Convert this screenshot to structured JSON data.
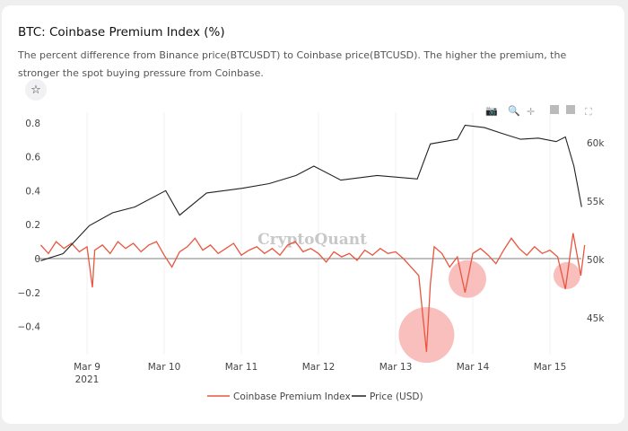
{
  "header": {
    "title": "BTC: Coinbase Premium Index (%)",
    "description": "The percent difference from Binance price(BTCUSDT) to Coinbase price(BTCUSD). The higher the premium, the stronger the spot buying pressure from Coinbase.",
    "favorite_icon": "star-icon"
  },
  "toolbar": {
    "icons": [
      "camera-icon",
      "zoom-icon",
      "pan-icon",
      "zoom-in-icon",
      "zoom-out-icon",
      "autoscale-icon"
    ]
  },
  "watermark": "CryptoQuant",
  "chart_data": {
    "type": "line",
    "title": "BTC: Coinbase Premium Index (%)",
    "x_unit": "days since Mar 9 2021 00:00",
    "x_ticks": [
      {
        "v": 0,
        "label": "Mar 9",
        "sub": "2021"
      },
      {
        "v": 1,
        "label": "Mar 10"
      },
      {
        "v": 2,
        "label": "Mar 11"
      },
      {
        "v": 3,
        "label": "Mar 12"
      },
      {
        "v": 4,
        "label": "Mar 13"
      },
      {
        "v": 5,
        "label": "Mar 14"
      },
      {
        "v": 6,
        "label": "Mar 15"
      }
    ],
    "xlim": [
      -0.6,
      6.5
    ],
    "y_left": {
      "ticks": [
        {
          "v": 0.8,
          "label": "0.8"
        },
        {
          "v": 0.6,
          "label": "0.6"
        },
        {
          "v": 0.4,
          "label": "0.4"
        },
        {
          "v": 0.2,
          "label": "0.2"
        },
        {
          "v": 0,
          "label": "0"
        },
        {
          "v": -0.2,
          "label": "−0.2"
        },
        {
          "v": -0.4,
          "label": "−0.4"
        }
      ]
    },
    "y_right": {
      "ticks": [
        {
          "v": 60,
          "label": "60k"
        },
        {
          "v": 55,
          "label": "55k"
        },
        {
          "v": 50,
          "label": "50k"
        },
        {
          "v": 45,
          "label": "45k"
        }
      ]
    },
    "series": [
      {
        "name": "Coinbase Premium Index",
        "axis": "left",
        "color": "#e8563f",
        "x": [
          -0.6,
          -0.5,
          -0.4,
          -0.3,
          -0.2,
          -0.1,
          0,
          0.07,
          0.1,
          0.2,
          0.3,
          0.4,
          0.5,
          0.6,
          0.7,
          0.8,
          0.9,
          1.0,
          1.1,
          1.2,
          1.3,
          1.4,
          1.5,
          1.6,
          1.7,
          1.8,
          1.9,
          2.0,
          2.1,
          2.2,
          2.3,
          2.4,
          2.5,
          2.6,
          2.7,
          2.8,
          2.9,
          3.0,
          3.1,
          3.2,
          3.3,
          3.4,
          3.5,
          3.6,
          3.7,
          3.8,
          3.9,
          4.0,
          4.1,
          4.2,
          4.3,
          4.4,
          4.45,
          4.5,
          4.6,
          4.7,
          4.8,
          4.9,
          5.0,
          5.1,
          5.2,
          5.3,
          5.4,
          5.5,
          5.6,
          5.7,
          5.8,
          5.9,
          6.0,
          6.1,
          6.2,
          6.3,
          6.4,
          6.45
        ],
        "values": [
          0.08,
          0.03,
          0.1,
          0.06,
          0.09,
          0.04,
          0.07,
          -0.17,
          0.05,
          0.08,
          0.03,
          0.1,
          0.06,
          0.09,
          0.04,
          0.08,
          0.1,
          0.02,
          -0.05,
          0.04,
          0.07,
          0.12,
          0.05,
          0.08,
          0.03,
          0.06,
          0.09,
          0.02,
          0.05,
          0.07,
          0.03,
          0.06,
          0.02,
          0.08,
          0.1,
          0.04,
          0.06,
          0.03,
          -0.02,
          0.04,
          0.01,
          0.03,
          -0.01,
          0.05,
          0.02,
          0.06,
          0.03,
          0.04,
          0.0,
          -0.05,
          -0.1,
          -0.55,
          -0.15,
          0.07,
          0.03,
          -0.05,
          0.01,
          -0.2,
          0.03,
          0.06,
          0.02,
          -0.03,
          0.05,
          0.12,
          0.06,
          0.02,
          0.07,
          0.03,
          0.05,
          0.01,
          -0.18,
          0.15,
          -0.1,
          0.08
        ]
      },
      {
        "name": "Price (USD)",
        "axis": "right",
        "unit": "k USD",
        "color": "#222222",
        "x": [
          -0.6,
          -0.31,
          0.03,
          0.33,
          0.62,
          1.02,
          1.2,
          1.55,
          2.01,
          2.36,
          2.71,
          2.94,
          3.29,
          3.76,
          4.28,
          4.45,
          4.8,
          4.9,
          5.15,
          5.38,
          5.62,
          5.85,
          6.08,
          6.2,
          6.31,
          6.41
        ],
        "values": [
          49.9,
          50.5,
          52.9,
          54,
          54.5,
          55.9,
          53.8,
          55.7,
          56.1,
          56.5,
          57.2,
          58,
          56.8,
          57.2,
          56.9,
          59.9,
          60.3,
          61.5,
          61.3,
          60.8,
          60.3,
          60.4,
          60.1,
          60.5,
          58,
          54.5
        ]
      }
    ],
    "annotations": [
      {
        "x": 4.4,
        "y": -0.45,
        "size": "large"
      },
      {
        "x": 4.93,
        "y": -0.12,
        "size": "medium"
      },
      {
        "x": 6.22,
        "y": -0.1,
        "size": "small"
      }
    ],
    "legend": {
      "placement": "bottom-center",
      "items": [
        "Coinbase Premium Index",
        "Price (USD)"
      ]
    }
  }
}
